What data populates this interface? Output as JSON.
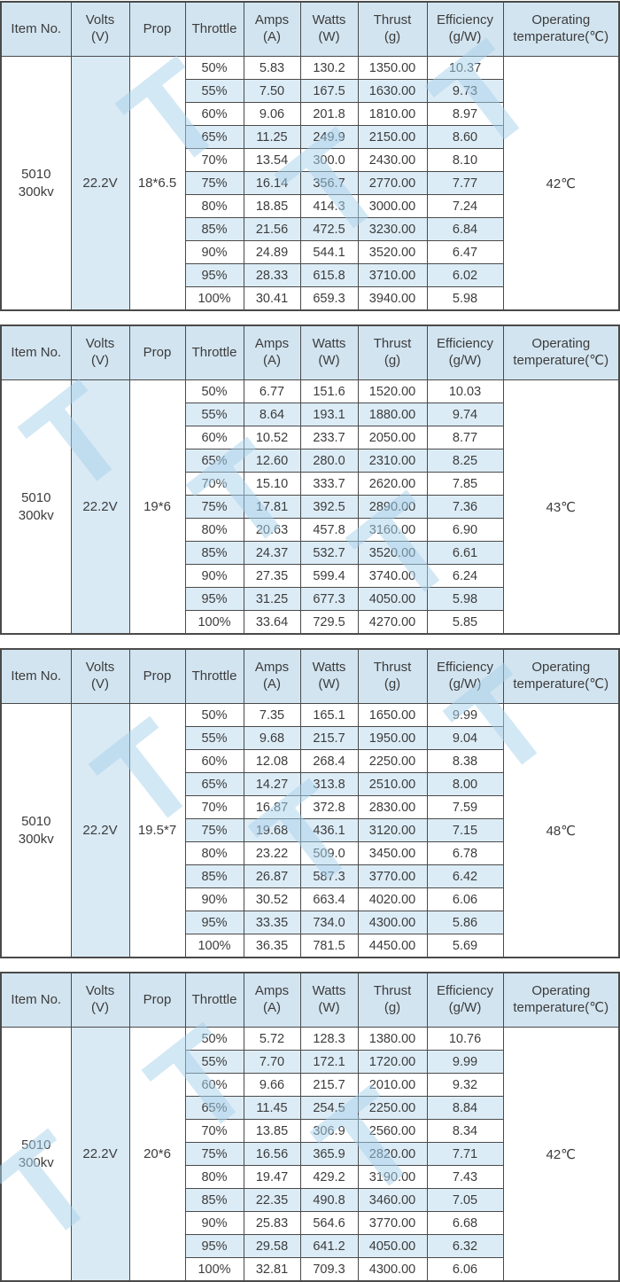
{
  "watermark": {
    "glyph": "T"
  },
  "colors": {
    "header_bg": "#d2e4f0",
    "alt_row_bg": "#dcecf6",
    "volts_col_bg": "#d9eaf5",
    "border": "#4a4a4a",
    "text": "#3c3c3c",
    "watermark": "#a9d2ec"
  },
  "columns": [
    {
      "key": "item-no",
      "line1": "Item No.",
      "line2": ""
    },
    {
      "key": "volts",
      "line1": "Volts",
      "line2": "(V)"
    },
    {
      "key": "prop",
      "line1": "Prop",
      "line2": ""
    },
    {
      "key": "throttle",
      "line1": "Throttle",
      "line2": ""
    },
    {
      "key": "amps",
      "line1": "Amps",
      "line2": "(A)"
    },
    {
      "key": "watts",
      "line1": "Watts",
      "line2": "(W)"
    },
    {
      "key": "thrust",
      "line1": "Thrust",
      "line2": "(g)"
    },
    {
      "key": "efficiency",
      "line1": "Efficiency",
      "line2": "(g/W)"
    },
    {
      "key": "operating-temperature",
      "line1": "Operating",
      "line2": "temperature(℃)"
    }
  ],
  "row_fields": [
    "throttle",
    "amps_a",
    "watts_w",
    "thrust_g",
    "efficiency_g_per_w"
  ],
  "tables": [
    {
      "item_no": [
        "5010",
        "300kv"
      ],
      "volts": "22.2V",
      "prop": "18*6.5",
      "temperature": "42℃",
      "rows": [
        [
          "50%",
          "5.83",
          "130.2",
          "1350.00",
          "10.37"
        ],
        [
          "55%",
          "7.50",
          "167.5",
          "1630.00",
          "9.73"
        ],
        [
          "60%",
          "9.06",
          "201.8",
          "1810.00",
          "8.97"
        ],
        [
          "65%",
          "11.25",
          "249.9",
          "2150.00",
          "8.60"
        ],
        [
          "70%",
          "13.54",
          "300.0",
          "2430.00",
          "8.10"
        ],
        [
          "75%",
          "16.14",
          "356.7",
          "2770.00",
          "7.77"
        ],
        [
          "80%",
          "18.85",
          "414.3",
          "3000.00",
          "7.24"
        ],
        [
          "85%",
          "21.56",
          "472.5",
          "3230.00",
          "6.84"
        ],
        [
          "90%",
          "24.89",
          "544.1",
          "3520.00",
          "6.47"
        ],
        [
          "95%",
          "28.33",
          "615.8",
          "3710.00",
          "6.02"
        ],
        [
          "100%",
          "30.41",
          "659.3",
          "3940.00",
          "5.98"
        ]
      ]
    },
    {
      "item_no": [
        "5010",
        "300kv"
      ],
      "volts": "22.2V",
      "prop": "19*6",
      "temperature": "43℃",
      "rows": [
        [
          "50%",
          "6.77",
          "151.6",
          "1520.00",
          "10.03"
        ],
        [
          "55%",
          "8.64",
          "193.1",
          "1880.00",
          "9.74"
        ],
        [
          "60%",
          "10.52",
          "233.7",
          "2050.00",
          "8.77"
        ],
        [
          "65%",
          "12.60",
          "280.0",
          "2310.00",
          "8.25"
        ],
        [
          "70%",
          "15.10",
          "333.7",
          "2620.00",
          "7.85"
        ],
        [
          "75%",
          "17.81",
          "392.5",
          "2890.00",
          "7.36"
        ],
        [
          "80%",
          "20.63",
          "457.8",
          "3160.00",
          "6.90"
        ],
        [
          "85%",
          "24.37",
          "532.7",
          "3520.00",
          "6.61"
        ],
        [
          "90%",
          "27.35",
          "599.4",
          "3740.00",
          "6.24"
        ],
        [
          "95%",
          "31.25",
          "677.3",
          "4050.00",
          "5.98"
        ],
        [
          "100%",
          "33.64",
          "729.5",
          "4270.00",
          "5.85"
        ]
      ]
    },
    {
      "item_no": [
        "5010",
        "300kv"
      ],
      "volts": "22.2V",
      "prop": "19.5*7",
      "temperature": "48℃",
      "rows": [
        [
          "50%",
          "7.35",
          "165.1",
          "1650.00",
          "9.99"
        ],
        [
          "55%",
          "9.68",
          "215.7",
          "1950.00",
          "9.04"
        ],
        [
          "60%",
          "12.08",
          "268.4",
          "2250.00",
          "8.38"
        ],
        [
          "65%",
          "14.27",
          "313.8",
          "2510.00",
          "8.00"
        ],
        [
          "70%",
          "16.87",
          "372.8",
          "2830.00",
          "7.59"
        ],
        [
          "75%",
          "19.68",
          "436.1",
          "3120.00",
          "7.15"
        ],
        [
          "80%",
          "23.22",
          "509.0",
          "3450.00",
          "6.78"
        ],
        [
          "85%",
          "26.87",
          "587.3",
          "3770.00",
          "6.42"
        ],
        [
          "90%",
          "30.52",
          "663.4",
          "4020.00",
          "6.06"
        ],
        [
          "95%",
          "33.35",
          "734.0",
          "4300.00",
          "5.86"
        ],
        [
          "100%",
          "36.35",
          "781.5",
          "4450.00",
          "5.69"
        ]
      ]
    },
    {
      "item_no": [
        "5010",
        "300kv"
      ],
      "volts": "22.2V",
      "prop": "20*6",
      "temperature": "42℃",
      "rows": [
        [
          "50%",
          "5.72",
          "128.3",
          "1380.00",
          "10.76"
        ],
        [
          "55%",
          "7.70",
          "172.1",
          "1720.00",
          "9.99"
        ],
        [
          "60%",
          "9.66",
          "215.7",
          "2010.00",
          "9.32"
        ],
        [
          "65%",
          "11.45",
          "254.5",
          "2250.00",
          "8.84"
        ],
        [
          "70%",
          "13.85",
          "306.9",
          "2560.00",
          "8.34"
        ],
        [
          "75%",
          "16.56",
          "365.9",
          "2820.00",
          "7.71"
        ],
        [
          "80%",
          "19.47",
          "429.2",
          "3190.00",
          "7.43"
        ],
        [
          "85%",
          "22.35",
          "490.8",
          "3460.00",
          "7.05"
        ],
        [
          "90%",
          "25.83",
          "564.6",
          "3770.00",
          "6.68"
        ],
        [
          "95%",
          "29.58",
          "641.2",
          "4050.00",
          "6.32"
        ],
        [
          "100%",
          "32.81",
          "709.3",
          "4300.00",
          "6.06"
        ]
      ]
    }
  ]
}
